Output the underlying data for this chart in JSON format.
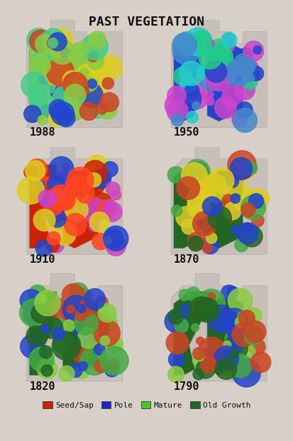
{
  "title": "PAST VEGETATION",
  "title_fontsize": 13,
  "background_color": "#d8d0c8",
  "panel_bg": "#e8e0d8",
  "grid_rows": 3,
  "grid_cols": 2,
  "years": [
    "1988",
    "1950",
    "1910",
    "1870",
    "1820",
    "1790"
  ],
  "year_fontsize": 11,
  "legend_items": [
    {
      "label": "Seed/Sap",
      "color": "#cc2200"
    },
    {
      "label": "Pole",
      "color": "#2222cc"
    },
    {
      "label": "Mature",
      "color": "#44cc22"
    },
    {
      "label": "Old Growth",
      "color": "#226622"
    }
  ],
  "map_colors": {
    "1988": {
      "dominant": "#88cc44",
      "secondary": "#cc4422",
      "accent1": "#ddcc22",
      "accent2": "#2244cc"
    },
    "1950": {
      "dominant": "#2244cc",
      "secondary": "#22cccc",
      "accent1": "#cc44cc",
      "accent2": "#22cc88"
    },
    "1910": {
      "dominant": "#cc2200",
      "secondary": "#ddcc22",
      "accent1": "#cc44cc",
      "accent2": "#2244cc"
    },
    "1870": {
      "dominant": "#226622",
      "secondary": "#cc4422",
      "accent1": "#ddcc22",
      "accent2": "#2244cc"
    },
    "1820": {
      "dominant": "#226622",
      "secondary": "#cc4422",
      "accent1": "#88cc44",
      "accent2": "#2244cc"
    },
    "1790": {
      "dominant": "#226622",
      "secondary": "#cc4422",
      "accent1": "#88cc44",
      "accent2": "#2244cc"
    }
  },
  "divider_color": "#aaaaaa",
  "text_color": "#111111",
  "font_family": "monospace"
}
